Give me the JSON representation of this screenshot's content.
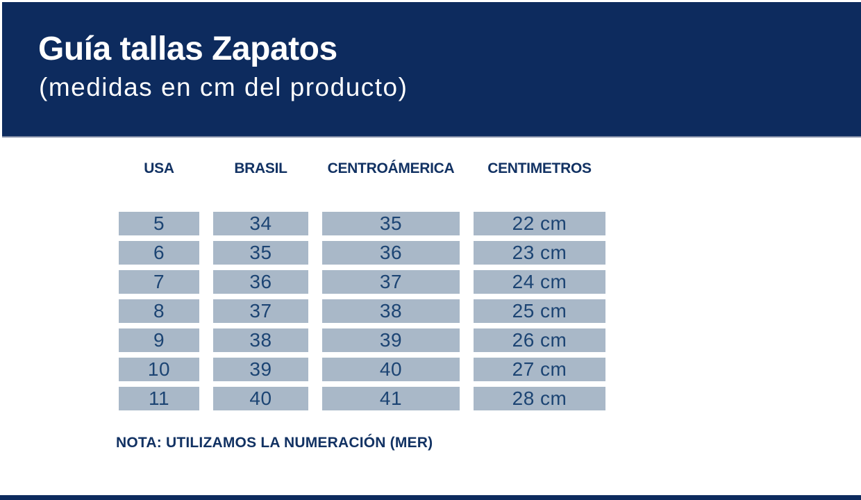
{
  "header": {
    "title": "Guía tallas Zapatos",
    "subtitle": "(medidas en cm del producto)"
  },
  "table": {
    "columns": [
      "USA",
      "BRASIL",
      "CENTROÁMERICA",
      "CENTIMETROS"
    ],
    "rows": [
      [
        "5",
        "34",
        "35",
        "22 cm"
      ],
      [
        "6",
        "35",
        "36",
        "23 cm"
      ],
      [
        "7",
        "36",
        "37",
        "24 cm"
      ],
      [
        "8",
        "37",
        "38",
        "25 cm"
      ],
      [
        "9",
        "38",
        "39",
        "26 cm"
      ],
      [
        "10",
        "39",
        "40",
        "27 cm"
      ],
      [
        "11",
        "40",
        "41",
        "28 cm"
      ]
    ]
  },
  "note": "NOTA: UTILIZAMOS LA NUMERACIÓN (MER)",
  "colors": {
    "band_navy": "#0d2b5e",
    "cell_background": "#a9b8c8",
    "heading_text": "#123263",
    "cell_text": "#1c4473"
  }
}
